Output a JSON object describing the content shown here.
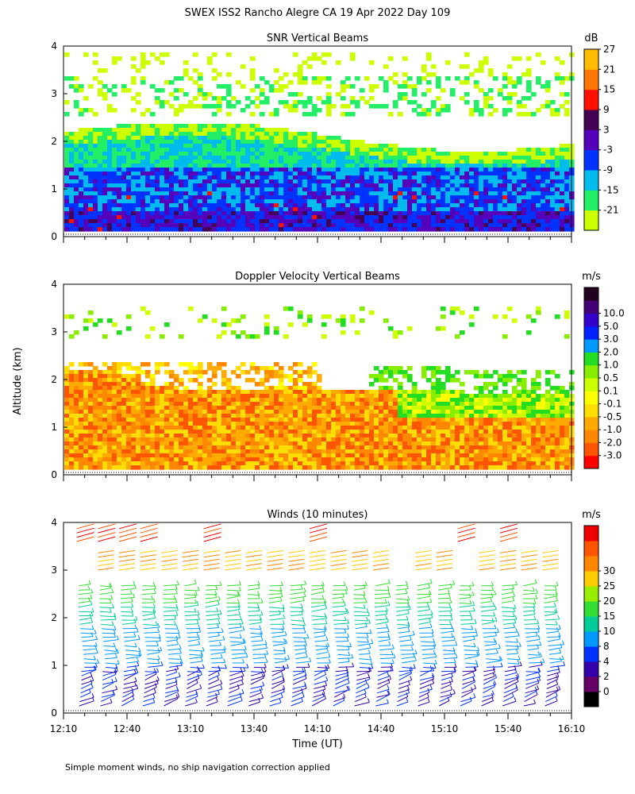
{
  "figure": {
    "title": "SWEX ISS2 Rancho Alegre CA  19 Apr 2022 Day 109",
    "y_axis_label": "Altitude (km)",
    "x_axis_label": "Time (UT)",
    "footnote": "Simple moment winds, no ship navigation correction applied"
  },
  "chart_data": [
    {
      "type": "heatmap",
      "title": "SNR Vertical Beams",
      "ylabel": "Altitude (km)",
      "ylim": [
        0,
        4
      ],
      "yticks": [
        "0",
        "1",
        "2",
        "3",
        "4"
      ],
      "xlim_minutes_utc": [
        730,
        970
      ],
      "colorbar": {
        "unit": "dB",
        "colors": [
          "#ccff00",
          "#22ee66",
          "#00bbee",
          "#0033ff",
          "#5500bb",
          "#440055",
          "#ff1100",
          "#ff7700",
          "#ffbb00"
        ],
        "labels": [
          "-21",
          "-15",
          "-9",
          "-3",
          "3",
          "9",
          "15",
          "21",
          "27"
        ]
      }
    },
    {
      "type": "heatmap",
      "title": "Doppler Velocity Vertical Beams",
      "ylabel": "Altitude (km)",
      "ylim": [
        0,
        4
      ],
      "yticks": [
        "0",
        "1",
        "2",
        "3",
        "4"
      ],
      "xlim_minutes_utc": [
        730,
        970
      ],
      "colorbar": {
        "unit": "m/s",
        "colors": [
          "#ff0000",
          "#ff5500",
          "#ff8800",
          "#ffaa00",
          "#ffdd00",
          "#ffff00",
          "#ccff00",
          "#88ee00",
          "#22dd22",
          "#0099ff",
          "#0022ff",
          "#3300cc",
          "#440077",
          "#220022"
        ],
        "labels": [
          "-3.0",
          "-2.0",
          "-1.0",
          "-0.5",
          "-0.1",
          "0.1",
          "0.5",
          "1.0",
          "2.0",
          "3.0",
          "5.0",
          "10.0"
        ]
      }
    },
    {
      "type": "wind_barbs",
      "title": "Winds (10 minutes)",
      "ylabel": "Altitude (km)",
      "xlabel": "Time (UT)",
      "ylim": [
        0,
        4
      ],
      "yticks": [
        "0",
        "1",
        "2",
        "3",
        "4"
      ],
      "xlim_minutes_utc": [
        730,
        970
      ],
      "xticks": [
        "12:10",
        "12:40",
        "13:10",
        "13:40",
        "14:10",
        "14:40",
        "15:10",
        "15:40",
        "16:10"
      ],
      "colorbar": {
        "unit": "m/s",
        "colors": [
          "#000000",
          "#660066",
          "#3300aa",
          "#0033ff",
          "#0099ff",
          "#00cc99",
          "#33dd33",
          "#99ee00",
          "#ffcc00",
          "#ff8800",
          "#ff5500",
          "#ee0000"
        ],
        "labels": [
          "0",
          "2",
          "4",
          "8",
          "10",
          "15",
          "20",
          "25",
          "30"
        ]
      }
    }
  ]
}
